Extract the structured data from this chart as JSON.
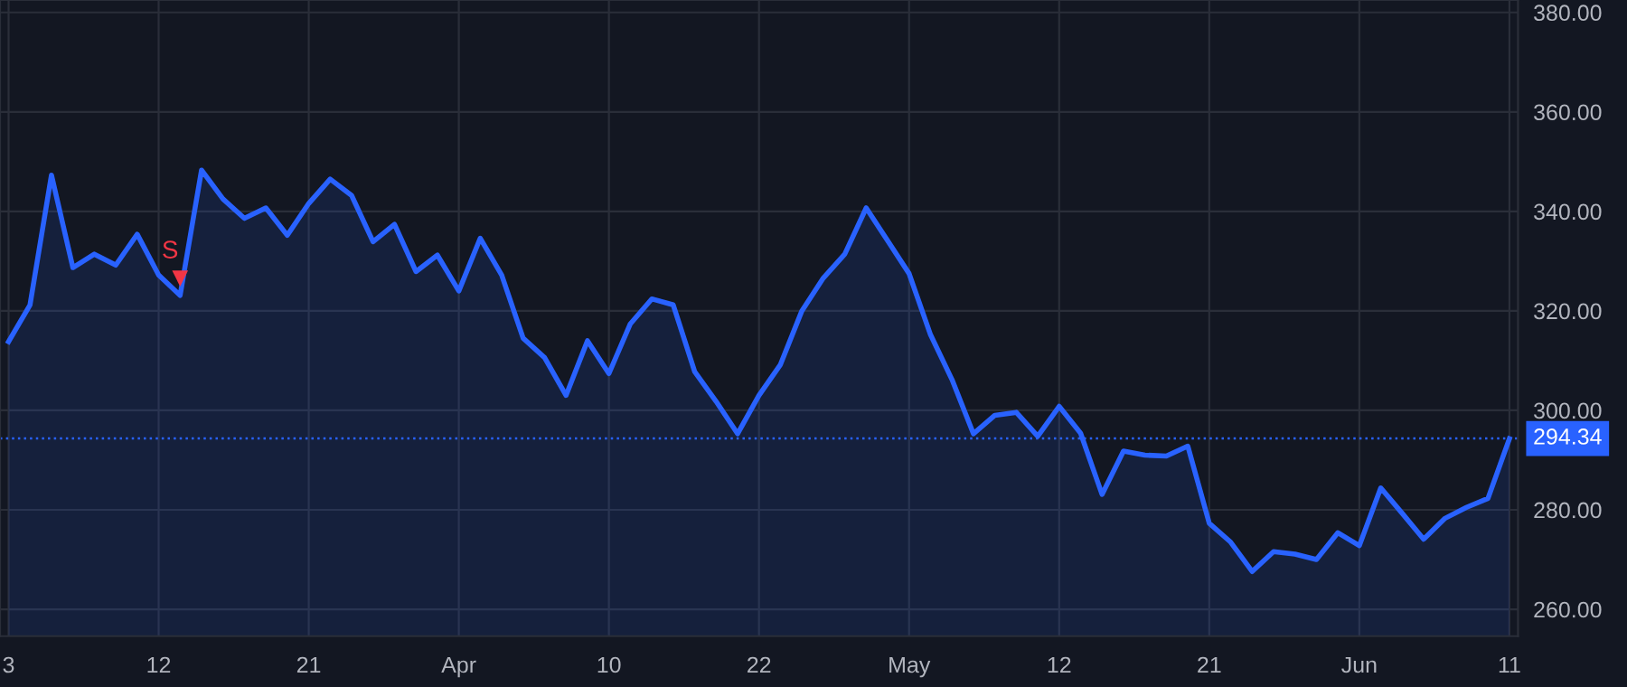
{
  "chart_data": {
    "type": "area",
    "categories": [
      "3",
      null,
      null,
      null,
      null,
      null,
      null,
      "12",
      null,
      null,
      null,
      null,
      null,
      null,
      "21",
      null,
      null,
      null,
      null,
      null,
      null,
      "Apr",
      null,
      null,
      null,
      null,
      null,
      null,
      "10",
      null,
      null,
      null,
      null,
      null,
      null,
      "22",
      null,
      null,
      null,
      null,
      null,
      null,
      "May",
      null,
      null,
      null,
      null,
      null,
      null,
      "12",
      null,
      null,
      null,
      null,
      null,
      null,
      "21",
      null,
      null,
      null,
      null,
      null,
      null,
      "Jun",
      null,
      null,
      null,
      null,
      null,
      null,
      "11"
    ],
    "series": [
      {
        "color": "#2962ff",
        "values": [
          313.8,
          321.2,
          347.3,
          328.7,
          331.4,
          329.2,
          335.4,
          327.2,
          323.1,
          348.3,
          342.5,
          338.6,
          340.7,
          335.2,
          341.6,
          346.5,
          343.2,
          333.9,
          337.4,
          327.9,
          331.2,
          324.0,
          334.6,
          327.2,
          314.5,
          310.6,
          303.0,
          314.0,
          307.4,
          317.4,
          322.4,
          321.2,
          307.8,
          301.8,
          295.3,
          303.0,
          309.2,
          320.0,
          326.6,
          331.4,
          340.7,
          334.1,
          327.5,
          315.2,
          306.2,
          295.3,
          299.0,
          299.6,
          294.8,
          300.8,
          295.4,
          283.1,
          291.8,
          291.0,
          290.8,
          292.8,
          277.3,
          273.5,
          267.6,
          271.6,
          271.1,
          270.0,
          275.4,
          272.8,
          284.4,
          279.3,
          274.1,
          278.3,
          280.5,
          282.3,
          294.3
        ]
      },
      {
        "type": "scatter",
        "name": "S",
        "color": "#f23645",
        "marker": "triangle",
        "values": [
          null,
          null,
          null,
          null,
          null,
          null,
          null,
          null,
          326.5,
          null,
          null,
          null,
          null,
          null,
          null,
          null,
          null,
          null,
          null,
          null,
          null,
          null,
          null,
          null,
          null,
          null,
          null,
          null,
          null,
          null,
          null,
          null,
          null,
          null,
          null,
          null,
          null,
          null,
          null,
          null,
          null,
          null,
          null,
          null,
          null,
          null,
          null,
          null,
          null,
          null,
          null,
          null,
          null,
          null,
          null,
          null,
          null,
          null,
          null,
          null,
          null,
          null,
          null,
          null,
          null,
          null,
          null,
          null,
          null,
          null,
          null
        ]
      }
    ],
    "ylim": [
      254.6,
      382.5
    ],
    "yticks": [
      {
        "value": 260,
        "label": "260.00"
      },
      {
        "value": 280,
        "label": "280.00"
      },
      {
        "value": 300,
        "label": "300.00"
      },
      {
        "value": 320,
        "label": "320.00"
      },
      {
        "value": 340,
        "label": "340.00"
      },
      {
        "value": 360,
        "label": "360.00"
      },
      {
        "value": 380,
        "label": "380.00"
      }
    ],
    "ref_lines": [
      {
        "axis": "y",
        "value": 294.34,
        "label": "294.34",
        "color": "#2962ff",
        "line_style": "dotted"
      }
    ],
    "grid": true,
    "line_style": "solid"
  }
}
